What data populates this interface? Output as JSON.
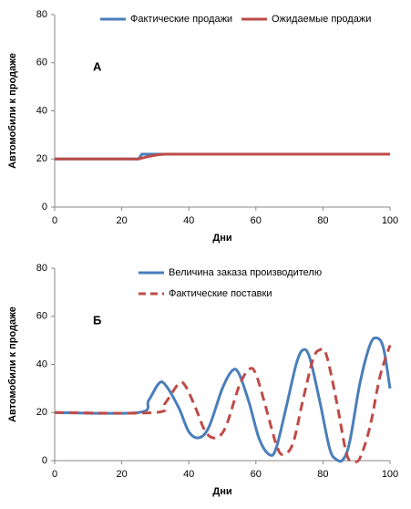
{
  "chart_data": [
    {
      "type": "line",
      "annotation": "А",
      "xlabel": "Дни",
      "ylabel": "Автомобили к продаже",
      "xlim": [
        0,
        100
      ],
      "xticks": [
        0,
        20,
        40,
        60,
        80,
        100
      ],
      "ylim": [
        0,
        80
      ],
      "yticks": [
        0,
        20,
        40,
        60,
        80
      ],
      "legend": "top",
      "legend_layout": "horizontal",
      "smooth": false,
      "series": [
        {
          "name": "Фактические продажи",
          "color": "#4a7ebb",
          "dash": false,
          "x": [
            0,
            25,
            26,
            100
          ],
          "values": [
            20,
            20,
            22,
            22
          ]
        },
        {
          "name": "Ожидаемые продажи",
          "color": "#be4b48",
          "dash": false,
          "x": [
            0,
            25,
            27,
            29,
            31,
            33,
            100
          ],
          "values": [
            20,
            20,
            20.7,
            21.3,
            21.8,
            22,
            22
          ]
        }
      ]
    },
    {
      "type": "line",
      "annotation": "Б",
      "xlabel": "Дни",
      "ylabel": "Автомобили к продаже",
      "xlim": [
        0,
        100
      ],
      "xticks": [
        0,
        20,
        40,
        60,
        80,
        100
      ],
      "ylim": [
        0,
        80
      ],
      "yticks": [
        0,
        20,
        40,
        60,
        80
      ],
      "legend": "top",
      "legend_layout": "vertical",
      "smooth": true,
      "series": [
        {
          "name": "Величина заказа производителю",
          "color": "#4a7ebb",
          "dash": false,
          "x": [
            0,
            25,
            28,
            31,
            33,
            37,
            40,
            43,
            46,
            50,
            53,
            55,
            58,
            61,
            64,
            66,
            69,
            72,
            74,
            76,
            79,
            82,
            84,
            86,
            88,
            91,
            94,
            96,
            98,
            100
          ],
          "values": [
            20,
            20,
            25,
            32,
            31.5,
            22,
            12,
            9.5,
            14,
            30,
            37.5,
            36,
            24,
            9,
            2.5,
            5,
            22,
            40,
            46,
            43,
            25,
            5,
            0.5,
            0.5,
            8,
            32,
            48,
            51,
            47,
            30
          ]
        },
        {
          "name": "Фактические поставки",
          "color": "#be4b48",
          "dash": true,
          "x": [
            0,
            30,
            33,
            37,
            39,
            42,
            45,
            48,
            51,
            55,
            58,
            60,
            63,
            66,
            68,
            71,
            74,
            77,
            79,
            81,
            84,
            87,
            89,
            91,
            94,
            97,
            100
          ],
          "values": [
            20,
            20,
            24,
            32,
            31,
            22,
            12,
            9.5,
            14,
            31,
            38,
            36,
            22,
            7,
            2.5,
            7,
            25,
            42,
            46,
            44,
            25,
            3,
            0,
            1,
            14,
            35,
            48
          ]
        }
      ]
    }
  ]
}
